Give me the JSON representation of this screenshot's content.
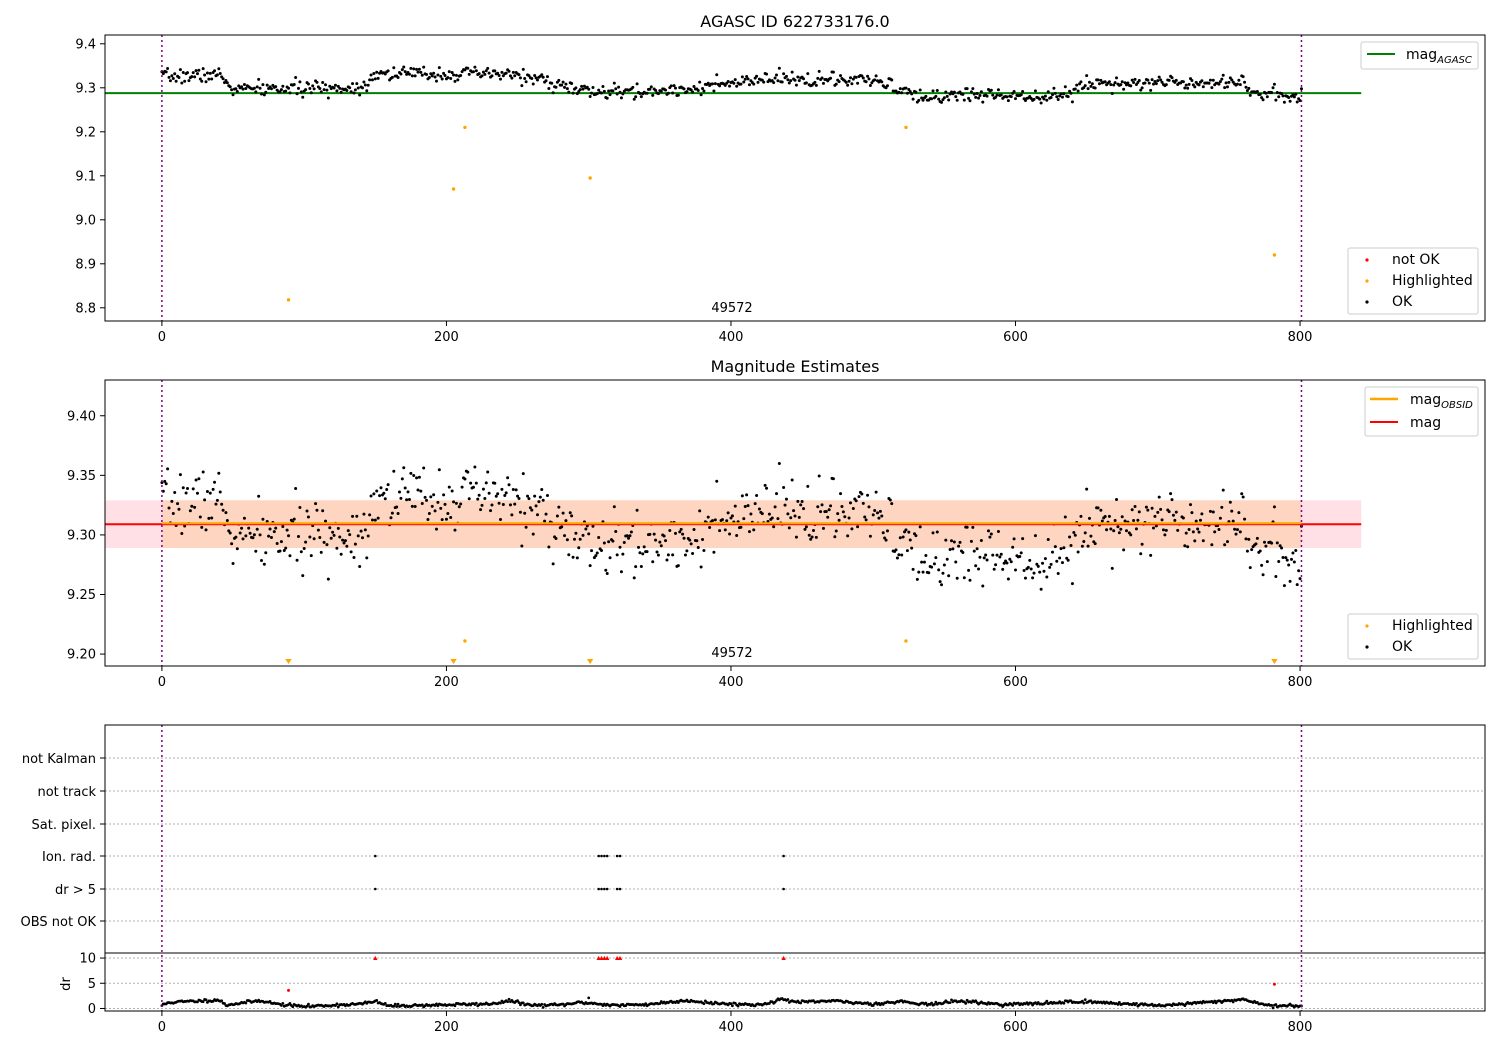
{
  "chart_data": [
    {
      "type": "scatter",
      "title": "AGASC ID 622733176.0",
      "xlim": [
        -40,
        930
      ],
      "ylim": [
        8.77,
        9.42
      ],
      "xticks": [
        0,
        200,
        400,
        600,
        800
      ],
      "yticks": [
        8.8,
        8.9,
        9.0,
        9.1,
        9.2,
        9.3,
        9.4
      ],
      "ytick_labels": [
        "8.8",
        "8.9",
        "9.0",
        "9.1",
        "9.2",
        "9.3",
        "9.4"
      ],
      "grid": false,
      "vlines": [
        0,
        801
      ],
      "annotation": {
        "text": "49572",
        "x": 400,
        "y": 8.79
      },
      "reference_line": {
        "label_base": "mag",
        "label_sub": "AGASC",
        "y": 9.288,
        "x_range": [
          -40,
          843
        ],
        "color": "#008000"
      },
      "lines_legend_position": "top-right",
      "points_legend_position": "lower-right",
      "legend_points": [
        {
          "label": "not OK",
          "color": "#ff0000"
        },
        {
          "label": "Highlighted",
          "color": "#ffa500"
        },
        {
          "label": "OK",
          "color": "#000000"
        }
      ],
      "ok_series": {
        "name": "OK",
        "start_x": 0,
        "end_x": 801,
        "step": 1,
        "seed": 7,
        "noise": 0.008,
        "level_knots": [
          [
            0,
            9.325
          ],
          [
            40,
            9.33
          ],
          [
            50,
            9.297
          ],
          [
            140,
            9.3
          ],
          [
            150,
            9.333
          ],
          [
            250,
            9.33
          ],
          [
            300,
            9.29
          ],
          [
            340,
            9.29
          ],
          [
            390,
            9.305
          ],
          [
            430,
            9.32
          ],
          [
            500,
            9.315
          ],
          [
            520,
            9.298
          ],
          [
            530,
            9.275
          ],
          [
            560,
            9.285
          ],
          [
            640,
            9.282
          ],
          [
            645,
            9.31
          ],
          [
            760,
            9.315
          ],
          [
            770,
            9.283
          ],
          [
            801,
            9.283
          ]
        ]
      },
      "highlighted_points": [
        [
          89,
          8.818
        ],
        [
          205,
          9.07
        ],
        [
          213,
          9.21
        ],
        [
          301,
          9.095
        ],
        [
          523,
          9.21
        ],
        [
          782,
          8.92
        ]
      ],
      "not_ok_points": []
    },
    {
      "type": "scatter",
      "title": "Magnitude Estimates",
      "xlim": [
        -40,
        930
      ],
      "ylim": [
        9.19,
        9.43
      ],
      "xticks": [
        0,
        200,
        400,
        600,
        800
      ],
      "yticks": [
        9.2,
        9.25,
        9.3,
        9.35,
        9.4
      ],
      "ytick_labels": [
        "9.20",
        "9.25",
        "9.30",
        "9.35",
        "9.40"
      ],
      "grid": false,
      "vlines": [
        0,
        801
      ],
      "annotation": {
        "text": "49572",
        "x": 400,
        "y": 9.2
      },
      "band": {
        "y_low": 9.289,
        "y_high": 9.329,
        "obsid_x_range": [
          0,
          801
        ],
        "total_x_range": [
          -40,
          843
        ]
      },
      "lines": [
        {
          "label_base": "mag",
          "label_sub": "OBSID",
          "y": 9.309,
          "color": "#ffa500",
          "x_range": [
            0,
            801
          ]
        },
        {
          "label_base": "mag",
          "label_sub": "",
          "y": 9.309,
          "color": "#ff0000",
          "x_range": [
            -40,
            843
          ]
        }
      ],
      "lines_legend_position": "top-right",
      "points_legend_position": "lower-right",
      "legend_points": [
        {
          "label": "Highlighted",
          "color": "#ffa500"
        },
        {
          "label": "OK",
          "color": "#000000"
        }
      ],
      "ok_series": {
        "name": "OK",
        "start_x": 0,
        "end_x": 801,
        "step": 1,
        "seed": 7,
        "noise": 0.013,
        "level_knots": [
          [
            0,
            9.325
          ],
          [
            40,
            9.33
          ],
          [
            50,
            9.297
          ],
          [
            140,
            9.3
          ],
          [
            150,
            9.333
          ],
          [
            250,
            9.33
          ],
          [
            300,
            9.29
          ],
          [
            340,
            9.29
          ],
          [
            390,
            9.305
          ],
          [
            430,
            9.32
          ],
          [
            500,
            9.315
          ],
          [
            520,
            9.298
          ],
          [
            530,
            9.275
          ],
          [
            560,
            9.285
          ],
          [
            640,
            9.282
          ],
          [
            645,
            9.31
          ],
          [
            760,
            9.315
          ],
          [
            770,
            9.283
          ],
          [
            801,
            9.283
          ]
        ]
      },
      "highlighted_points": [
        [
          213,
          9.211
        ],
        [
          523,
          9.211
        ]
      ],
      "below_range_markers": [
        89,
        205,
        301,
        782
      ]
    },
    {
      "type": "scatter",
      "title": "",
      "xlim": [
        -40,
        930
      ],
      "xticks": [
        0,
        200,
        400,
        600,
        800
      ],
      "vlines": [
        0,
        801
      ],
      "flag_categories": [
        "not Kalman",
        "not track",
        "Sat. pixel.",
        "Ion. rad.",
        "dr > 5",
        "OBS not OK"
      ],
      "flag_points": {
        "Ion. rad.": [
          150,
          307,
          309,
          311,
          313,
          320,
          322,
          437
        ],
        "dr > 5": [
          150,
          307,
          309,
          311,
          313,
          320,
          322,
          437
        ]
      },
      "dr": {
        "ylabel": "dr",
        "ylim": [
          -0.5,
          11
        ],
        "yticks": [
          0,
          5,
          10
        ],
        "ytick_labels": [
          "0",
          "5",
          "10"
        ],
        "clipped_markers": [
          150,
          307,
          309,
          311,
          313,
          320,
          322,
          437
        ],
        "highlighted_points": [
          [
            89,
            3.6
          ],
          [
            782,
            4.8
          ]
        ],
        "ok_outliers": [
          [
            300,
            2.1
          ]
        ],
        "ok_series": {
          "start_x": 0,
          "end_x": 801,
          "step": 1,
          "seed": 11,
          "level_knots": [
            [
              0,
              0.6
            ],
            [
              5,
              1.2
            ],
            [
              40,
              1.7
            ],
            [
              45,
              0.7
            ],
            [
              70,
              1.6
            ],
            [
              80,
              0.9
            ],
            [
              100,
              0.4
            ],
            [
              140,
              0.9
            ],
            [
              150,
              1.4
            ],
            [
              160,
              0.5
            ],
            [
              230,
              0.9
            ],
            [
              245,
              1.5
            ],
            [
              260,
              0.6
            ],
            [
              280,
              0.7
            ],
            [
              295,
              1.2
            ],
            [
              320,
              0.6
            ],
            [
              340,
              0.8
            ],
            [
              370,
              1.6
            ],
            [
              390,
              1.0
            ],
            [
              420,
              0.7
            ],
            [
              435,
              1.8
            ],
            [
              450,
              1.2
            ],
            [
              470,
              1.5
            ],
            [
              500,
              0.9
            ],
            [
              520,
              1.4
            ],
            [
              540,
              0.8
            ],
            [
              560,
              1.5
            ],
            [
              590,
              0.8
            ],
            [
              620,
              1.0
            ],
            [
              640,
              1.4
            ],
            [
              660,
              1.2
            ],
            [
              700,
              0.6
            ],
            [
              720,
              0.9
            ],
            [
              760,
              1.8
            ],
            [
              780,
              0.5
            ],
            [
              801,
              0.5
            ]
          ]
        }
      }
    }
  ]
}
